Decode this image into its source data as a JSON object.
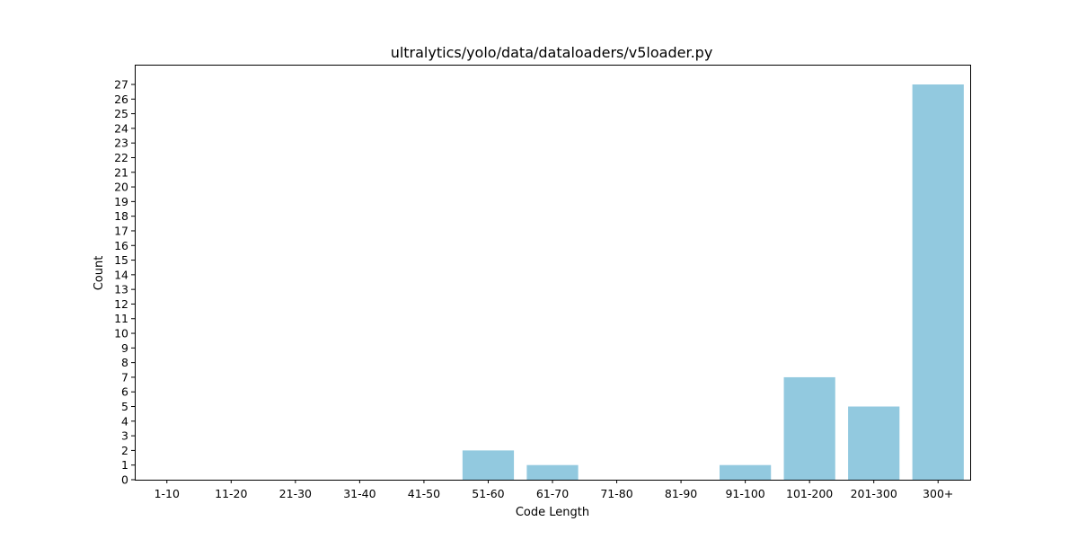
{
  "chart_data": {
    "type": "bar",
    "title": "ultralytics/yolo/data/dataloaders/v5loader.py",
    "xlabel": "Code Length",
    "ylabel": "Count",
    "categories": [
      "1-10",
      "11-20",
      "21-30",
      "31-40",
      "41-50",
      "51-60",
      "61-70",
      "71-80",
      "81-90",
      "91-100",
      "101-200",
      "201-300",
      "300+"
    ],
    "values": [
      0,
      0,
      0,
      0,
      0,
      2,
      1,
      0,
      0,
      1,
      7,
      5,
      27
    ],
    "ylim": [
      0,
      28.35
    ],
    "yticks": [
      0,
      1,
      2,
      3,
      4,
      5,
      6,
      7,
      8,
      9,
      10,
      11,
      12,
      13,
      14,
      15,
      16,
      17,
      18,
      19,
      20,
      21,
      22,
      23,
      24,
      25,
      26,
      27
    ],
    "bar_color": "#92c9df",
    "grid": false,
    "legend": "none"
  }
}
